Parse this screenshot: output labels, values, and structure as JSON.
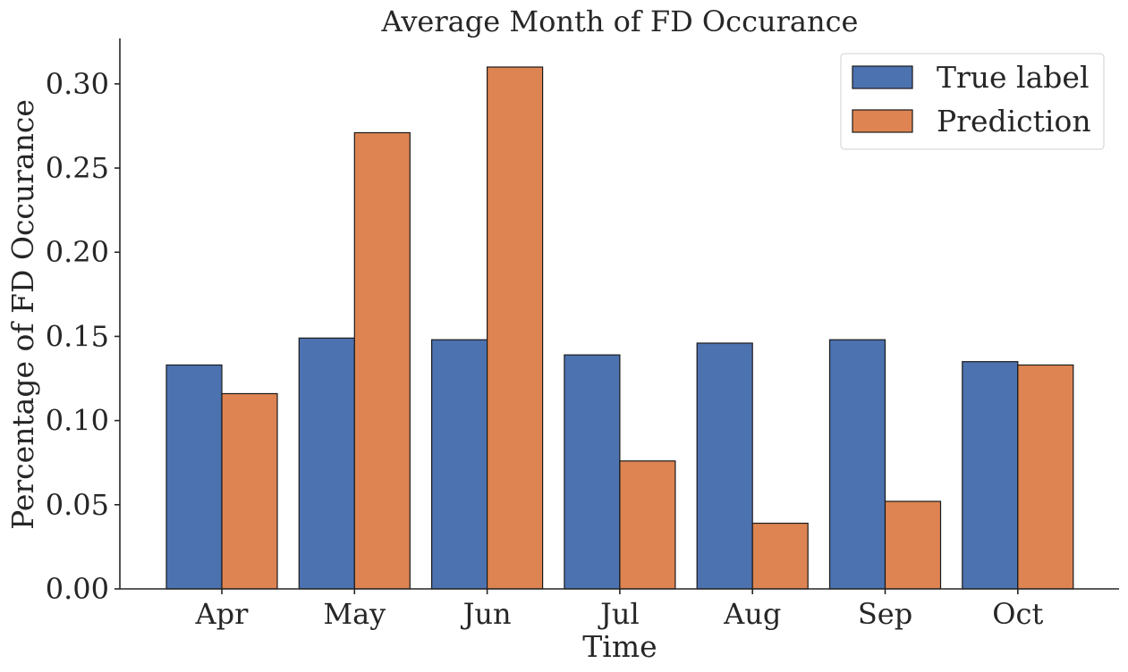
{
  "chart_data": {
    "type": "bar",
    "title": "Average Month of FD Occurance",
    "xlabel": "Time",
    "ylabel": "Percentage of FD Occurance",
    "categories": [
      "Apr",
      "May",
      "Jun",
      "Jul",
      "Aug",
      "Sep",
      "Oct"
    ],
    "series": [
      {
        "name": "True label",
        "color": "#4c72b0",
        "values": [
          0.133,
          0.149,
          0.148,
          0.139,
          0.146,
          0.148,
          0.135
        ]
      },
      {
        "name": "Prediction",
        "color": "#dd8452",
        "values": [
          0.116,
          0.271,
          0.31,
          0.076,
          0.039,
          0.052,
          0.133
        ]
      }
    ],
    "ylim": [
      0,
      0.327
    ],
    "yticks": [
      "0.00",
      "0.05",
      "0.10",
      "0.15",
      "0.20",
      "0.25",
      "0.30"
    ],
    "grid": false,
    "legend_position": "top-right"
  }
}
